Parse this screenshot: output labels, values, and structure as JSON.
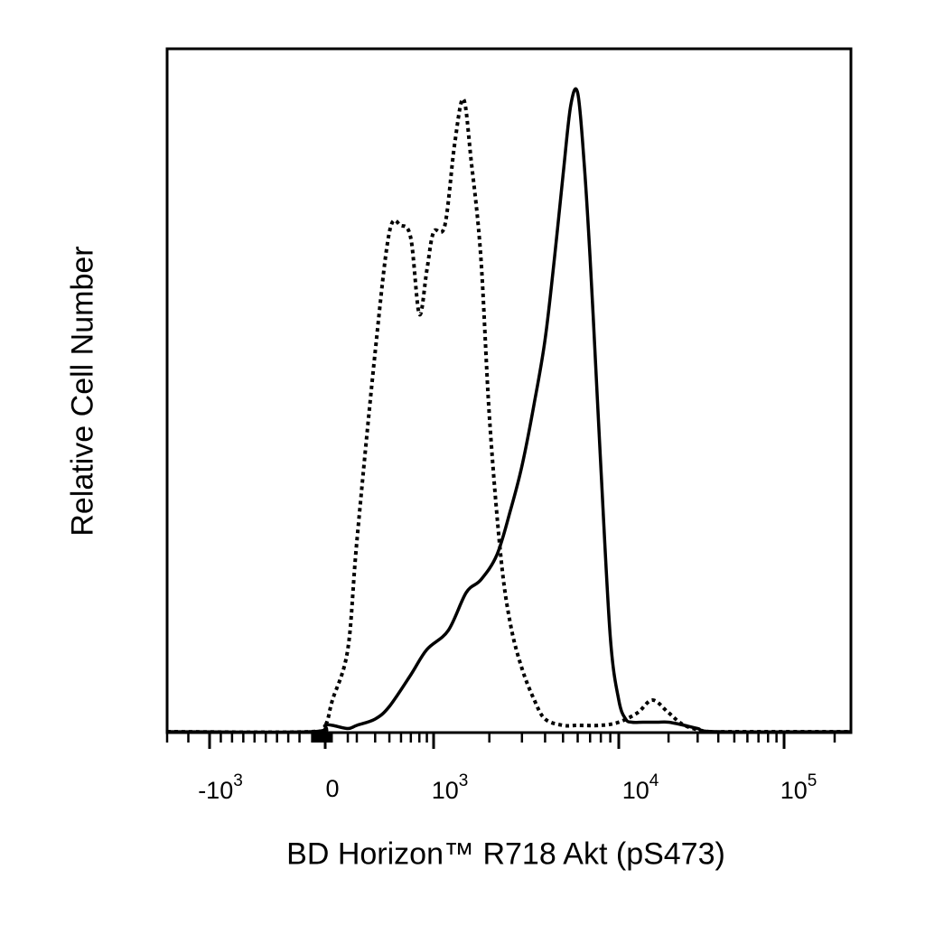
{
  "chart_data": {
    "type": "line",
    "title": "",
    "xlabel": "BD Horizon™ R718 Akt (pS473)",
    "ylabel": "Relative Cell Number",
    "x_scale": "biexponential",
    "xlim": [
      -3000,
      250000
    ],
    "ylim": [
      0,
      100
    ],
    "y_ticks": false,
    "grid": false,
    "legend": "none",
    "x_tick_labels": [
      {
        "value": -1000,
        "base": "-10",
        "exp": "3"
      },
      {
        "value": 0,
        "base": "0",
        "exp": ""
      },
      {
        "value": 1000,
        "base": "10",
        "exp": "3"
      },
      {
        "value": 10000,
        "base": "10",
        "exp": "4"
      },
      {
        "value": 100000,
        "base": "10",
        "exp": "5"
      }
    ],
    "series": [
      {
        "style": "dotted",
        "color": "#000000",
        "x": [
          -3000,
          -100,
          0,
          100,
          200,
          300,
          400,
          500,
          600,
          700,
          800,
          900,
          1000,
          1150,
          1300,
          1450,
          1600,
          1800,
          2000,
          2300,
          2600,
          3000,
          3500,
          4000,
          5000,
          6000,
          8000,
          10000,
          13000,
          16000,
          20000,
          25000,
          35000,
          50000,
          250000
        ],
        "y": [
          0,
          0,
          1,
          5,
          13,
          30,
          60,
          79,
          80,
          78,
          66,
          73,
          79,
          80,
          93,
          100,
          90,
          75,
          50,
          28,
          17,
          10,
          5,
          2,
          1,
          1,
          1,
          1.5,
          3,
          5,
          3,
          1,
          0,
          0,
          0
        ]
      },
      {
        "style": "solid",
        "color": "#000000",
        "x": [
          -3000,
          -100,
          0,
          100,
          200,
          300,
          400,
          500,
          700,
          900,
          1200,
          1500,
          1800,
          2200,
          2600,
          3000,
          3500,
          4000,
          4500,
          5000,
          5500,
          6000,
          6500,
          7000,
          7500,
          8000,
          9000,
          10000,
          11000,
          12000,
          14000,
          17000,
          20000,
          25000,
          30000,
          40000,
          250000
        ],
        "y": [
          0,
          0,
          1,
          1,
          0.5,
          1,
          2,
          4,
          9,
          13,
          16,
          22,
          24,
          28,
          35,
          42,
          52,
          62,
          75,
          88,
          99,
          101,
          90,
          75,
          58,
          42,
          15,
          5,
          2,
          1.5,
          1.5,
          1.5,
          1.5,
          1,
          0.5,
          0,
          0
        ]
      }
    ]
  }
}
